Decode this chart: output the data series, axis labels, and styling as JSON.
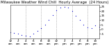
{
  "title": "Milwaukee Weather Wind Chill  Hourly Average  (24 Hours)",
  "title_fontsize": 3.8,
  "hours": [
    0,
    1,
    2,
    3,
    4,
    5,
    6,
    7,
    8,
    9,
    10,
    11,
    12,
    13,
    14,
    15,
    16,
    17,
    18,
    19,
    20,
    21,
    22,
    23
  ],
  "wind_chill": [
    -3,
    -4,
    -5,
    -6,
    -7,
    -8,
    -5,
    -2,
    1,
    5,
    10,
    16,
    21,
    24,
    25,
    24,
    20,
    15,
    10,
    5,
    2,
    1,
    4,
    3
  ],
  "line_color": "#0000cc",
  "markersize": 1.8,
  "background_color": "#ffffff",
  "grid_color": "#888888",
  "ylim": [
    -10,
    27
  ],
  "xlim": [
    0,
    23
  ],
  "ytick_values": [
    -5,
    0,
    5,
    10,
    15,
    20,
    25
  ],
  "ytick_labels": [
    "-5",
    "0",
    "5",
    "10",
    "15",
    "20",
    "25"
  ],
  "xtick_values": [
    0,
    2,
    4,
    6,
    8,
    10,
    12,
    14,
    16,
    18,
    20,
    22
  ],
  "xtick_labels": [
    "12\nam",
    "2\nam",
    "4\nam",
    "6\nam",
    "8\nam",
    "10\nam",
    "12\npm",
    "2\npm",
    "4\npm",
    "6\npm",
    "8\npm",
    "10\npm"
  ],
  "vgrid_positions": [
    4,
    8,
    12,
    16,
    20
  ],
  "tick_fontsize": 3.0,
  "linewidth": 0.0
}
